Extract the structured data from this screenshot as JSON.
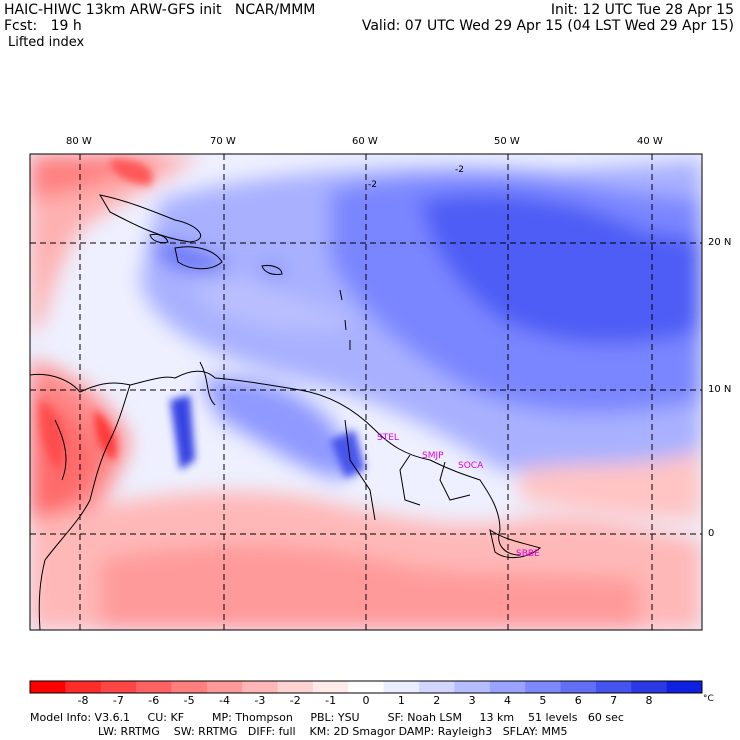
{
  "header": {
    "title": "HAIC-HIWC 13km ARW-GFS init",
    "org": "NCAR/MMM",
    "init": "Init: 12 UTC Tue 28 Apr 15",
    "fcst_label": "Fcst:",
    "fcst_value": "19 h",
    "valid": "Valid: 07 UTC Wed 29 Apr 15 (04 LST Wed 29 Apr 15)",
    "field": "Lifted index"
  },
  "map": {
    "lon_labels": [
      "80 W",
      "70 W",
      "60 W",
      "50 W",
      "40 W"
    ],
    "lat_labels": [
      "20 N",
      "10 N",
      "0"
    ],
    "contour_labels": [
      "-2",
      "-2"
    ],
    "stations": [
      "STEL",
      "SMJP",
      "SOCA",
      "SBBE"
    ],
    "colors": {
      "negative_strong": "#ff2020",
      "negative_weak": "#ffc8c8",
      "neutral": "#ffffff",
      "positive_weak": "#c8cdff",
      "positive_strong": "#1e28e6",
      "station": "#e000e0"
    }
  },
  "colorbar": {
    "labels": [
      "-8",
      "-7",
      "-6",
      "-5",
      "-4",
      "-3",
      "-2",
      "-1",
      "0",
      "1",
      "2",
      "3",
      "4",
      "5",
      "6",
      "7",
      "8"
    ],
    "unit": "°C",
    "colors": [
      "#ff0000",
      "#ff2c2c",
      "#ff4646",
      "#ff6262",
      "#ff7e7e",
      "#ff9a9a",
      "#ffb6b6",
      "#ffd2d2",
      "#ffeaea",
      "#ffffff",
      "#eaecff",
      "#d2d6ff",
      "#b6bdff",
      "#9aa3ff",
      "#7e89ff",
      "#626ff5",
      "#4654ee",
      "#2c3ae6",
      "#1020e0"
    ]
  },
  "model_info": {
    "line1": "Model Info: V3.6.1     CU: KF        MP: Thompson     PBL: YSU        SF: Noah LSM     13 km    51 levels   60 sec",
    "line2": "LW: RRTMG    SW: RRTMG   DIFF: full    KM: 2D Smagor DAMP: Rayleigh3   SFLAY: MM5"
  }
}
